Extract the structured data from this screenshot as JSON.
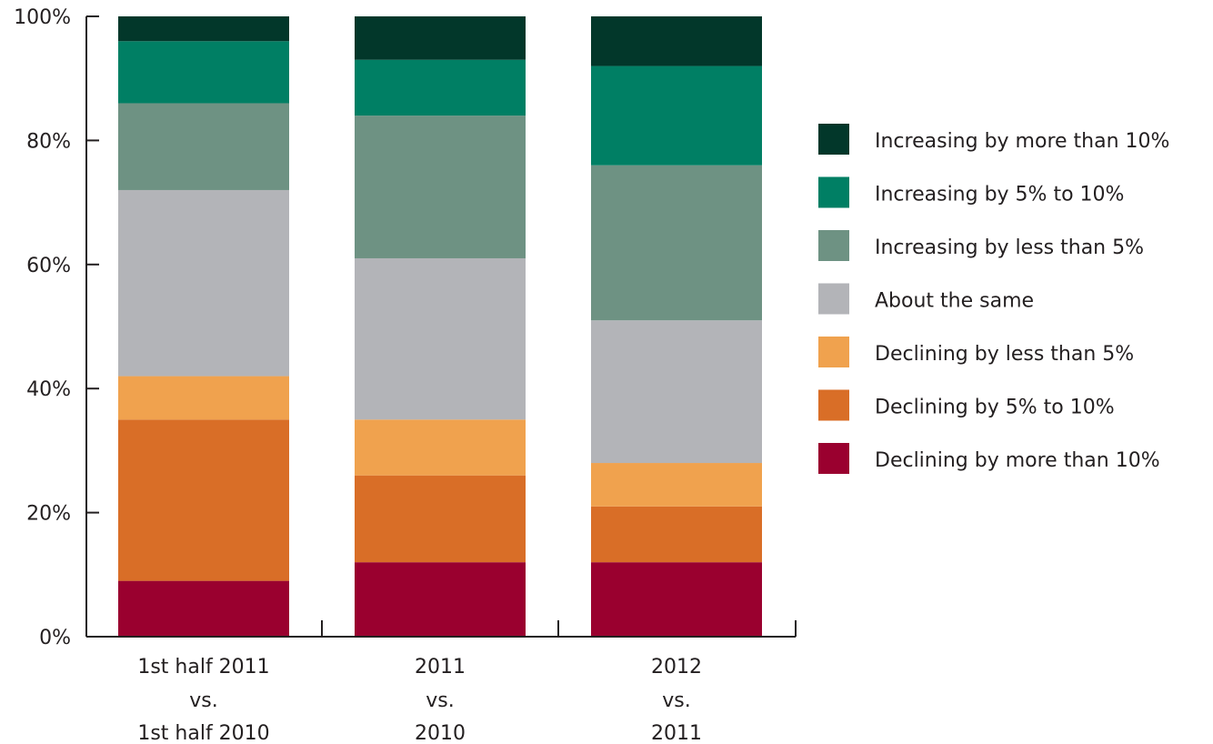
{
  "chart_data": {
    "type": "bar",
    "stacked": true,
    "categories": [
      [
        "1st half 2011",
        "vs.",
        "1st half 2010"
      ],
      [
        "2011",
        "vs.",
        "2010"
      ],
      [
        "2012",
        "vs.",
        "2011"
      ]
    ],
    "ylim": [
      0,
      100
    ],
    "y_ticks": [
      "0%",
      "20%",
      "40%",
      "60%",
      "80%",
      "100%"
    ],
    "y_tick_values": [
      0,
      20,
      40,
      60,
      80,
      100
    ],
    "grid": false,
    "legend_position": "right",
    "series": [
      {
        "name": "Declining by more than 10%",
        "color": "#9a002f",
        "values": [
          9,
          12,
          12
        ]
      },
      {
        "name": "Declining by 5% to 10%",
        "color": "#d96e27",
        "values": [
          26,
          14,
          9
        ]
      },
      {
        "name": "Declining by less than 5%",
        "color": "#f0a24e",
        "values": [
          7,
          9,
          7
        ]
      },
      {
        "name": "About the same",
        "color": "#b3b4b8",
        "values": [
          30,
          26,
          23
        ]
      },
      {
        "name": "Increasing by less than 5%",
        "color": "#6e9283",
        "values": [
          14,
          23,
          25
        ]
      },
      {
        "name": "Increasing by 5% to 10%",
        "color": "#007f64",
        "values": [
          10,
          9,
          16
        ]
      },
      {
        "name": "Increasing by more than 10%",
        "color": "#02372a",
        "values": [
          4,
          7,
          8
        ]
      }
    ]
  }
}
